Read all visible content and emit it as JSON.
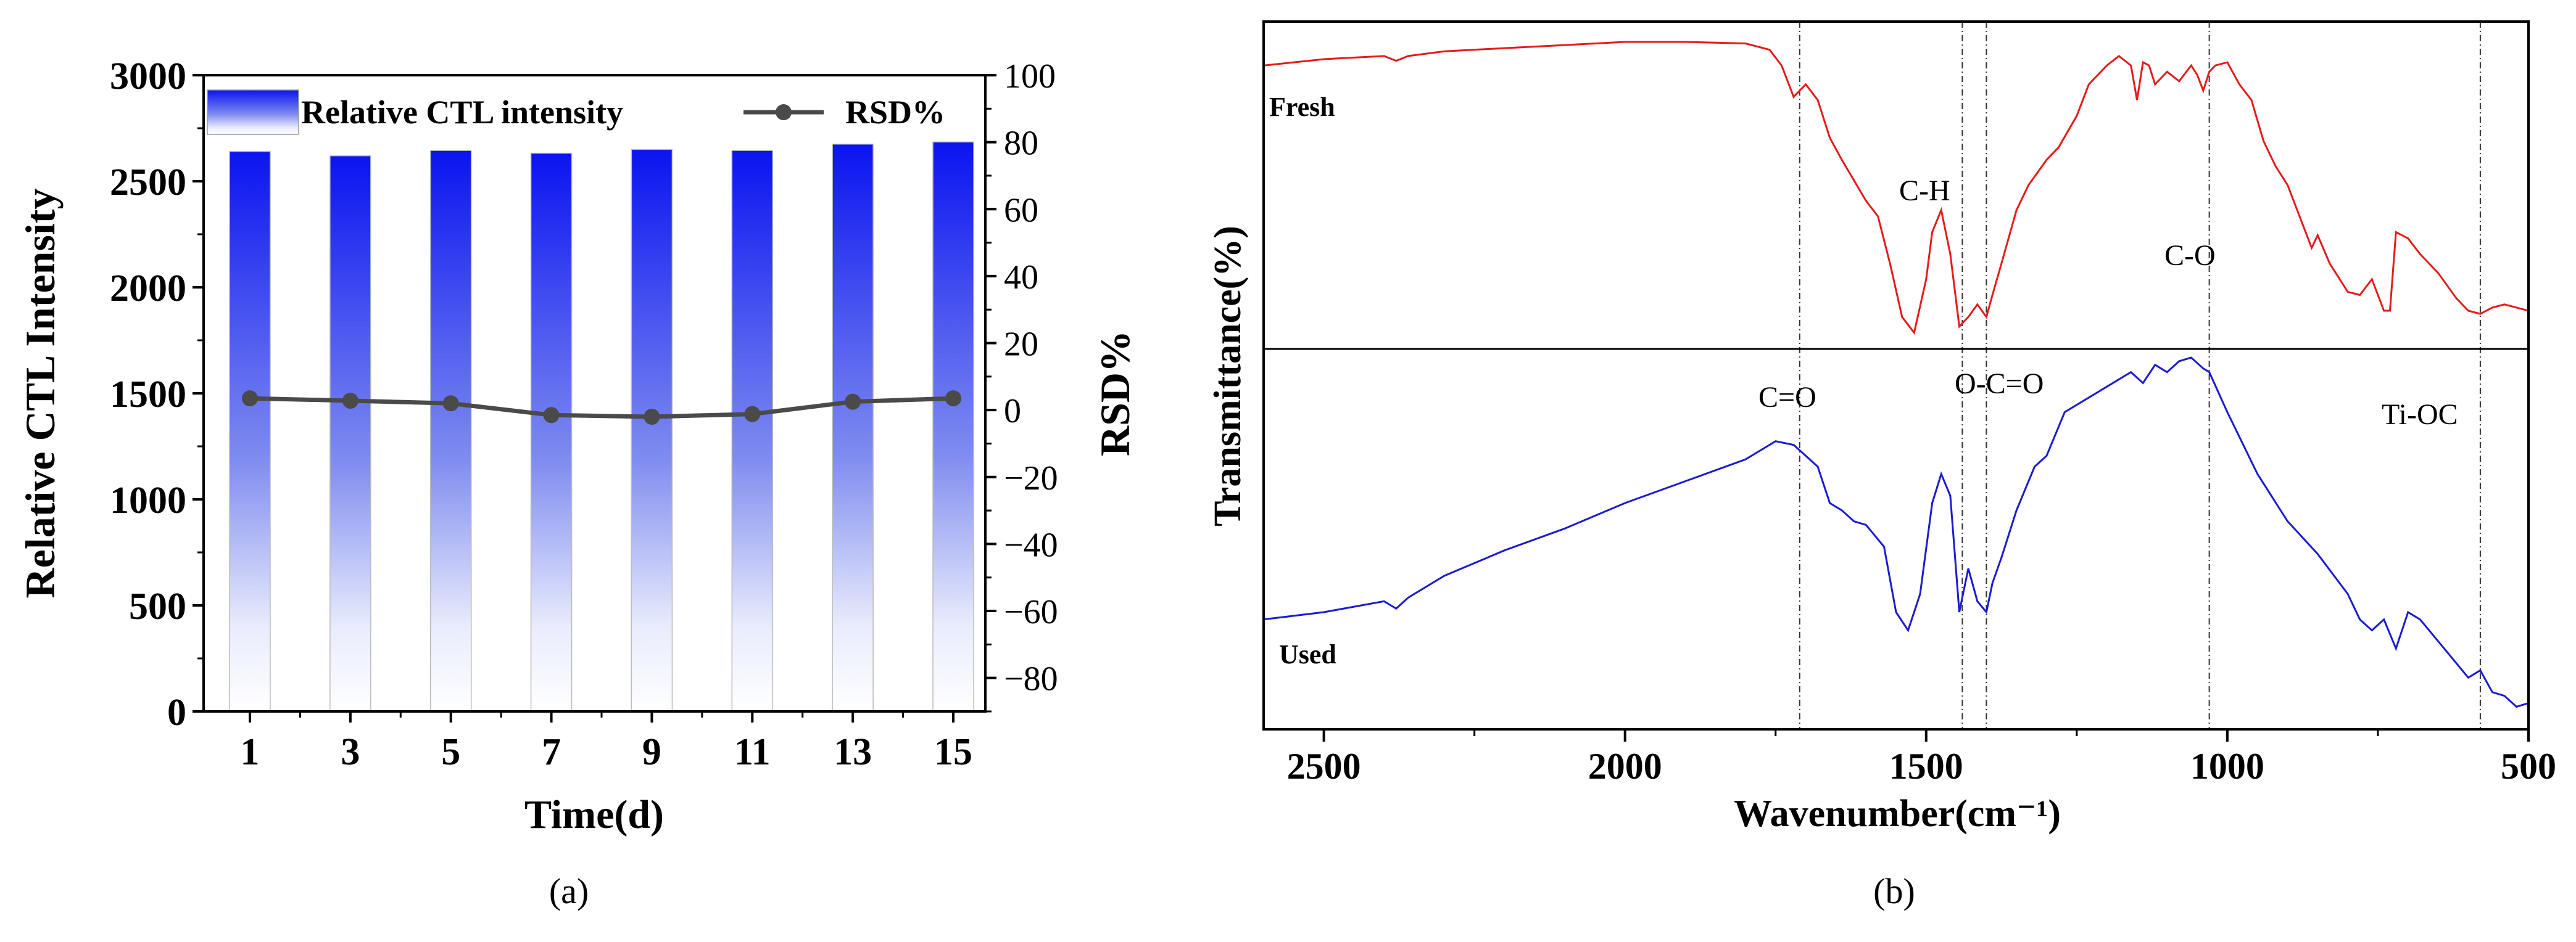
{
  "colors": {
    "bar_top": "#0a14f0",
    "rsd_line": "#4a4a4a",
    "fresh": "#e61a1a",
    "used": "#1a1ad2",
    "axis": "#000000"
  },
  "chart_data": [
    {
      "type": "bar",
      "panel_label": "(a)",
      "xlabel": "Time(d)",
      "ylabel": "Relative CTL Intensity",
      "y2label": "RSD%",
      "ylim": [
        0,
        3000
      ],
      "yticks": [
        "0",
        "500",
        "1000",
        "1500",
        "2000",
        "2500",
        "3000"
      ],
      "y2lim": [
        -90,
        100
      ],
      "y2ticks": [
        "−80",
        "−60",
        "−40",
        "−20",
        "0",
        "20",
        "40",
        "60",
        "80",
        "100"
      ],
      "categories": [
        "1",
        "3",
        "5",
        "7",
        "9",
        "11",
        "13",
        "15"
      ],
      "series": [
        {
          "name": "Relative CTL intensity",
          "axis": "left",
          "kind": "bar",
          "values": [
            2640,
            2620,
            2645,
            2632,
            2650,
            2645,
            2675,
            2685
          ]
        },
        {
          "name": "RSD%",
          "axis": "right",
          "kind": "line",
          "values": [
            3.5,
            2.8,
            2.0,
            -1.5,
            -2.0,
            -1.2,
            2.5,
            3.5
          ]
        }
      ],
      "legend": [
        "Relative CTL intensity",
        "RSD%"
      ],
      "legend_position": "top"
    },
    {
      "type": "line",
      "panel_label": "(b)",
      "xlabel": "Wavenumber(cm⁻¹)",
      "ylabel": "Transmittance(%)",
      "xlim": [
        2600,
        500
      ],
      "xticks": [
        "2500",
        "2000",
        "1500",
        "1000",
        "500"
      ],
      "x_reversed": true,
      "reference_lines": [
        1710,
        1440,
        1400,
        1030,
        580
      ],
      "annotations": [
        "C-H",
        "C-O",
        "C=O",
        "O-C=O",
        "Ti-OC"
      ],
      "series": [
        {
          "name": "Fresh",
          "x": [
            2600,
            2500,
            2400,
            2380,
            2360,
            2300,
            2200,
            2100,
            2000,
            1900,
            1800,
            1760,
            1740,
            1720,
            1700,
            1680,
            1660,
            1640,
            1600,
            1580,
            1560,
            1540,
            1520,
            1500,
            1490,
            1475,
            1460,
            1445,
            1430,
            1415,
            1400,
            1390,
            1375,
            1350,
            1330,
            1300,
            1280,
            1250,
            1230,
            1200,
            1180,
            1160,
            1150,
            1140,
            1130,
            1120,
            1100,
            1080,
            1060,
            1050,
            1040,
            1030,
            1020,
            1000,
            980,
            960,
            940,
            920,
            900,
            880,
            860,
            850,
            830,
            800,
            780,
            760,
            740,
            730,
            720,
            700,
            680,
            650,
            620,
            600,
            580,
            560,
            540,
            520,
            500
          ],
          "y": [
            88,
            90,
            91,
            89.5,
            91,
            92.5,
            93.5,
            94.5,
            95.5,
            95.5,
            95,
            93,
            88,
            78,
            82,
            77,
            65,
            58,
            45,
            40,
            25,
            8,
            3,
            20,
            35,
            42,
            28,
            5,
            8,
            12,
            8,
            15,
            25,
            42,
            50,
            58,
            62,
            72,
            82,
            88,
            91,
            88,
            77,
            89,
            88,
            82,
            86,
            83,
            88,
            85,
            80,
            86,
            88,
            89,
            82,
            77,
            64,
            56,
            50,
            40,
            30,
            34,
            25,
            16,
            15,
            20,
            10,
            10,
            35,
            33,
            28,
            22,
            14,
            10,
            9,
            11,
            12,
            11,
            10
          ]
        },
        {
          "name": "Used",
          "x": [
            2600,
            2500,
            2400,
            2380,
            2360,
            2300,
            2200,
            2100,
            2000,
            1900,
            1800,
            1750,
            1720,
            1700,
            1680,
            1660,
            1640,
            1620,
            1600,
            1590,
            1570,
            1550,
            1530,
            1510,
            1490,
            1475,
            1460,
            1445,
            1430,
            1415,
            1400,
            1390,
            1375,
            1350,
            1320,
            1300,
            1270,
            1240,
            1200,
            1160,
            1140,
            1120,
            1100,
            1080,
            1060,
            1040,
            1030,
            1000,
            950,
            900,
            850,
            800,
            780,
            760,
            740,
            720,
            700,
            680,
            650,
            620,
            600,
            580,
            560,
            540,
            520,
            500
          ],
          "y": [
            28,
            30,
            33,
            31,
            34,
            40,
            47,
            53,
            60,
            66,
            72,
            77,
            76,
            73,
            70,
            60,
            58,
            55,
            54,
            52,
            48,
            30,
            25,
            35,
            60,
            68,
            62,
            30,
            42,
            33,
            30,
            38,
            45,
            58,
            70,
            73,
            85,
            88,
            92,
            96,
            93,
            98,
            96,
            99,
            100,
            97,
            96,
            85,
            68,
            55,
            46,
            35,
            28,
            25,
            28,
            20,
            30,
            28,
            22,
            16,
            12,
            14,
            8,
            7,
            4,
            5
          ]
        }
      ]
    }
  ]
}
